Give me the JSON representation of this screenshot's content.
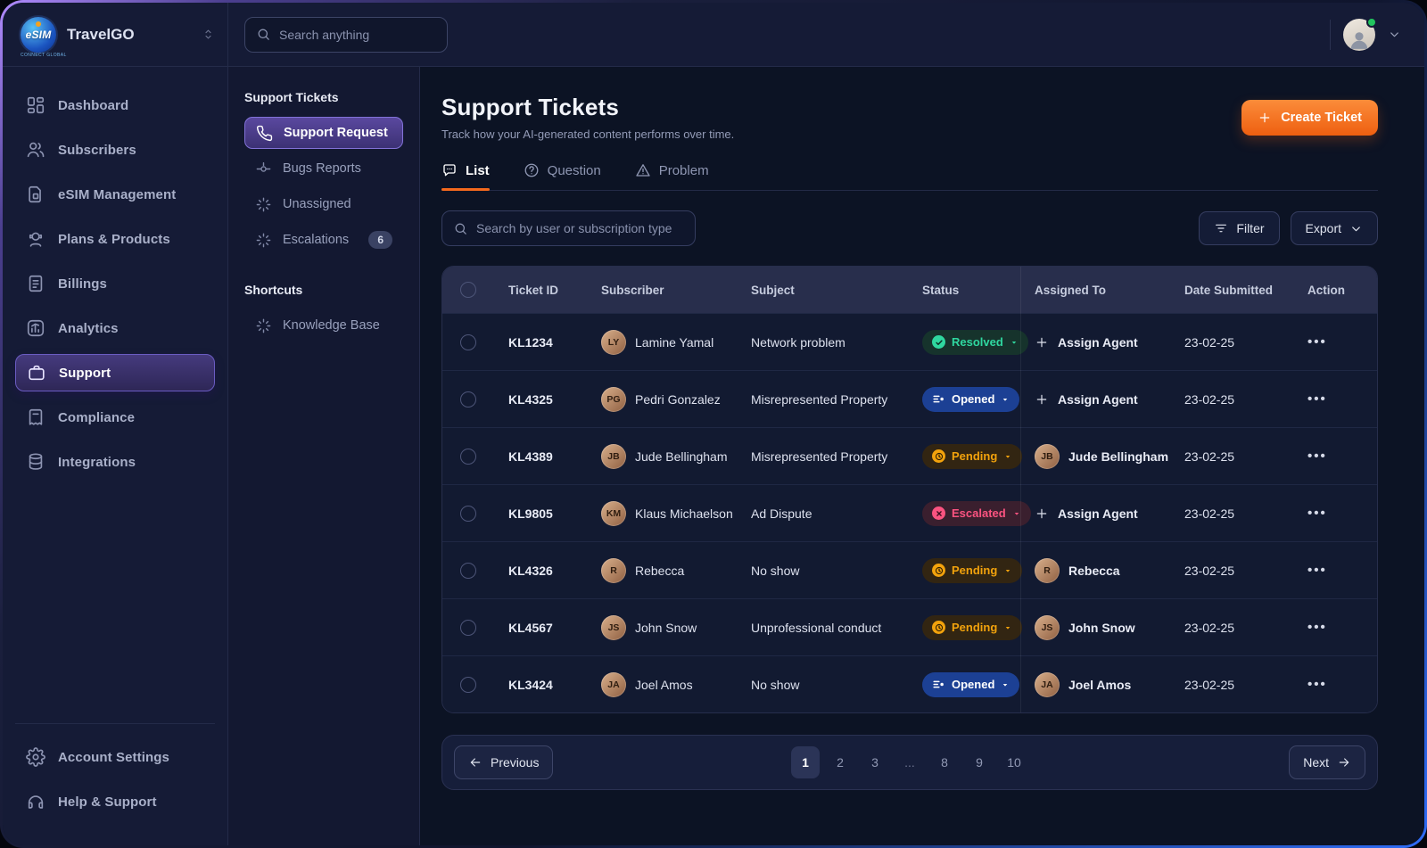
{
  "topbar": {
    "brand": "TravelGO",
    "logo_text": "eSIM",
    "logo_subtext": "CONNECT GLOBAL",
    "search_placeholder": "Search anything"
  },
  "sidebar": {
    "items": [
      {
        "label": "Dashboard",
        "icon": "dashboard",
        "active": false
      },
      {
        "label": "Subscribers",
        "icon": "users",
        "active": false
      },
      {
        "label": "eSIM Management",
        "icon": "sim",
        "active": false
      },
      {
        "label": "Plans & Products",
        "icon": "bot",
        "active": false
      },
      {
        "label": "Billings",
        "icon": "billing",
        "active": false
      },
      {
        "label": "Analytics",
        "icon": "analytics",
        "active": false
      },
      {
        "label": "Support",
        "icon": "briefcase",
        "active": true
      },
      {
        "label": "Compliance",
        "icon": "compliance",
        "active": false
      },
      {
        "label": "Integrations",
        "icon": "database",
        "active": false
      }
    ],
    "footer_items": [
      {
        "label": "Account Settings",
        "icon": "gear"
      },
      {
        "label": "Help & Support",
        "icon": "headset"
      }
    ]
  },
  "subnav": {
    "sections": [
      {
        "title": "Support Tickets",
        "items": [
          {
            "label": "Support Request",
            "icon": "phone",
            "active": true
          },
          {
            "label": "Bugs Reports",
            "icon": "commit",
            "active": false
          },
          {
            "label": "Unassigned",
            "icon": "sparkle",
            "active": false
          },
          {
            "label": "Escalations",
            "icon": "sparkle",
            "active": false,
            "badge": "6"
          }
        ]
      },
      {
        "title": "Shortcuts",
        "items": [
          {
            "label": "Knowledge Base",
            "icon": "sparkle",
            "active": false
          }
        ]
      }
    ]
  },
  "page": {
    "title": "Support Tickets",
    "subtitle": "Track how your AI-generated content performs over time.",
    "create_button": "Create Ticket"
  },
  "tabs": [
    {
      "label": "List",
      "icon": "chat",
      "active": true
    },
    {
      "label": "Question",
      "icon": "question",
      "active": false
    },
    {
      "label": "Problem",
      "icon": "warning",
      "active": false
    }
  ],
  "toolbar": {
    "search_placeholder": "Search by user or subscription type",
    "filter_label": "Filter",
    "export_label": "Export"
  },
  "table": {
    "columns": [
      "Ticket ID",
      "Subscriber",
      "Subject",
      "Status",
      "Assigned To",
      "Date Submitted",
      "Action"
    ],
    "assign_agent_label": "Assign Agent",
    "rows": [
      {
        "ticket_id": "KL1234",
        "subscriber": "Lamine Yamal",
        "subject": "Network problem",
        "status": "Resolved",
        "assigned_to": "",
        "date_submitted": "23-02-25"
      },
      {
        "ticket_id": "KL4325",
        "subscriber": "Pedri Gonzalez",
        "subject": "Misrepresented Property",
        "status": "Opened",
        "assigned_to": "",
        "date_submitted": "23-02-25"
      },
      {
        "ticket_id": "KL4389",
        "subscriber": "Jude Bellingham",
        "subject": "Misrepresented Property",
        "status": "Pending",
        "assigned_to": "Jude Bellingham",
        "date_submitted": "23-02-25"
      },
      {
        "ticket_id": "KL9805",
        "subscriber": "Klaus Michaelson",
        "subject": "Ad Dispute",
        "status": "Escalated",
        "assigned_to": "",
        "date_submitted": "23-02-25"
      },
      {
        "ticket_id": "KL4326",
        "subscriber": "Rebecca",
        "subject": "No show",
        "status": "Pending",
        "assigned_to": "Rebecca",
        "date_submitted": "23-02-25"
      },
      {
        "ticket_id": "KL4567",
        "subscriber": "John Snow",
        "subject": "Unprofessional conduct",
        "status": "Pending",
        "assigned_to": "John Snow",
        "date_submitted": "23-02-25"
      },
      {
        "ticket_id": "KL3424",
        "subscriber": "Joel Amos",
        "subject": "No show",
        "status": "Opened",
        "assigned_to": "Joel Amos",
        "date_submitted": "23-02-25"
      }
    ]
  },
  "statuses": {
    "Resolved": {
      "fg": "#2fd79f",
      "bg": "#16332c",
      "icon": "check"
    },
    "Opened": {
      "fg": "#ffffff",
      "bg": "#1c4094",
      "icon": "opened"
    },
    "Pending": {
      "fg": "#f2a20c",
      "bg": "#322512",
      "icon": "clock"
    },
    "Escalated": {
      "fg": "#fb5380",
      "bg": "#3a1f2e",
      "icon": "xmark"
    }
  },
  "colors": {
    "accent_orange": "#f4691d",
    "active_purple": "#5a489f",
    "online_green": "#22c55e"
  },
  "pagination": {
    "previous_label": "Previous",
    "next_label": "Next",
    "pages": [
      "1",
      "2",
      "3",
      "...",
      "8",
      "9",
      "10"
    ],
    "active_page": "1"
  }
}
